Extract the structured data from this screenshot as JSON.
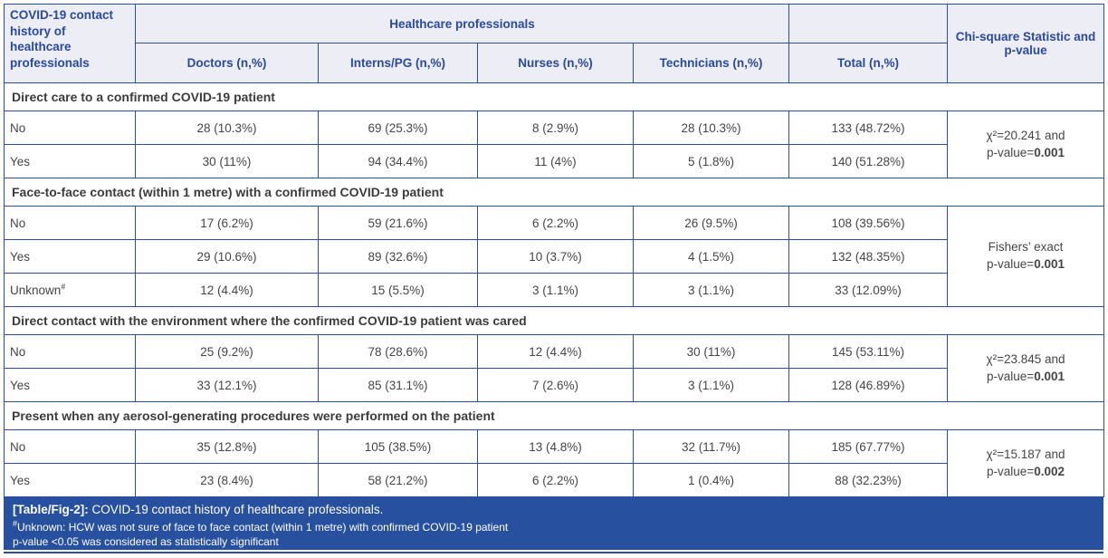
{
  "colors": {
    "border": "#2c4e9d",
    "header_bg": "#ecedf5",
    "header_text": "#2a4a9b",
    "body_text": "#454545",
    "section_text": "#3c3c3c",
    "footer_bg": "#27509e",
    "footer_text": "#ffffff"
  },
  "table": {
    "corner_header": "COVID-19 contact history of healthcare professionals",
    "group_header": "Healthcare professionals",
    "chi_header": "Chi-square Statistic and p-value",
    "columns": [
      "Doctors (n,%)",
      "Interns/PG (n,%)",
      "Nurses (n,%)",
      "Technicians (n,%)",
      "Total (n,%)"
    ],
    "sections": [
      {
        "title": "Direct care to a confirmed COVID-19 patient",
        "rows": [
          {
            "label": "No",
            "label_sup": "",
            "values": [
              "28 (10.3%)",
              "69 (25.3%)",
              "8 (2.9%)",
              "28 (10.3%)",
              "133 (48.72%)"
            ]
          },
          {
            "label": "Yes",
            "label_sup": "",
            "values": [
              "30 (11%)",
              "94 (34.4%)",
              "11 (4%)",
              "5 (1.8%)",
              "140 (51.28%)"
            ]
          }
        ],
        "stat": {
          "line1": "χ²=20.241 and",
          "line2_prefix": "p-value=",
          "value": "0.001"
        }
      },
      {
        "title": "Face-to-face contact (within 1 metre) with a confirmed COVID-19 patient",
        "rows": [
          {
            "label": "No",
            "label_sup": "",
            "values": [
              "17 (6.2%)",
              "59 (21.6%)",
              "6 (2.2%)",
              "26 (9.5%)",
              "108 (39.56%)"
            ]
          },
          {
            "label": "Yes",
            "label_sup": "",
            "values": [
              "29 (10.6%)",
              "89 (32.6%)",
              "10 (3.7%)",
              "4 (1.5%)",
              "132 (48.35%)"
            ]
          },
          {
            "label": "Unknown",
            "label_sup": "#",
            "values": [
              "12 (4.4%)",
              "15 (5.5%)",
              "3 (1.1%)",
              "3 (1.1%)",
              "33 (12.09%)"
            ]
          }
        ],
        "stat": {
          "line1": "Fishers’ exact",
          "line2_prefix": "p-value=",
          "value": "0.001"
        }
      },
      {
        "title": "Direct contact with the environment where the confirmed COVID-19 patient was cared",
        "rows": [
          {
            "label": "No",
            "label_sup": "",
            "values": [
              "25 (9.2%)",
              "78 (28.6%)",
              "12 (4.4%)",
              "30 (11%)",
              "145 (53.11%)"
            ]
          },
          {
            "label": "Yes",
            "label_sup": "",
            "values": [
              "33 (12.1%)",
              "85 (31.1%)",
              "7 (2.6%)",
              "3 (1.1%)",
              "128 (46.89%)"
            ]
          }
        ],
        "stat": {
          "line1": "χ²=23.845 and",
          "line2_prefix": "p-value=",
          "value": "0.001"
        }
      },
      {
        "title": "Present when any aerosol-generating procedures were performed on the patient",
        "rows": [
          {
            "label": "No",
            "label_sup": "",
            "values": [
              "35 (12.8%)",
              "105 (38.5%)",
              "13 (4.8%)",
              "32 (11.7%)",
              "185 (67.77%)"
            ]
          },
          {
            "label": "Yes",
            "label_sup": "",
            "values": [
              "23 (8.4%)",
              "58 (21.2%)",
              "6 (2.2%)",
              "1 (0.4%)",
              "88 (32.23%)"
            ]
          }
        ],
        "stat": {
          "line1": "χ²=15.187 and",
          "line2_prefix": "p-value=",
          "value": "0.002"
        }
      }
    ]
  },
  "footer": {
    "caption_label": "[Table/Fig-2]:",
    "caption_text": " COVID-19 contact history of healthcare professionals.",
    "note1_sup": "#",
    "note1_text": "Unknown: HCW was not sure of face to face contact (within 1 metre) with confirmed COVID-19 patient",
    "note2_text": "p-value <0.05 was considered as statistically significant"
  }
}
